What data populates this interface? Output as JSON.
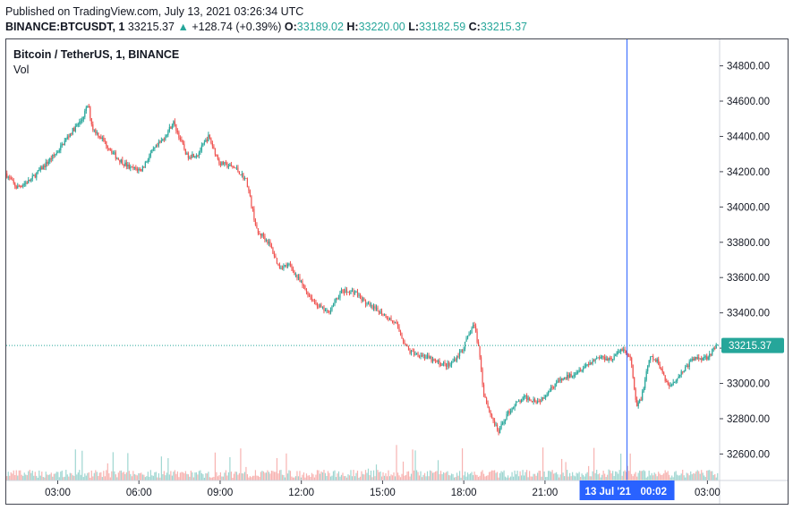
{
  "header": {
    "published": "Published on TradingView.com, July 13, 2021 03:26:34 UTC",
    "symbol": "BINANCE:BTCUSDT, 1",
    "last": "33215.37",
    "change_arrow": "▲",
    "change": "+128.74 (+0.39%)",
    "o_label": "O:",
    "o_value": "33189.02",
    "h_label": "H:",
    "h_value": "33220.00",
    "l_label": "L:",
    "l_value": "33182.59",
    "c_label": "C:",
    "c_value": "33215.37"
  },
  "colors": {
    "up": "#26a69a",
    "down": "#ef5350",
    "crosshair": "#2962ff",
    "vol_up": "#9fd6d1",
    "vol_down": "#f7b3b1",
    "grid": "#eef0f3",
    "price_badge": "#26a69a",
    "time_badge": "#2962ff"
  },
  "chart_data": {
    "type": "line",
    "legend_title": "Bitcoin / TetherUS, 1, BINANCE",
    "volume_label": "Vol",
    "ylim": [
      32450,
      34950
    ],
    "y_ticks": [
      32600,
      32800,
      33000,
      33200,
      33400,
      33600,
      33800,
      34000,
      34200,
      34400,
      34600,
      34800
    ],
    "y_tick_labels": [
      "32600.00",
      "32800.00",
      "33000.00",
      "33200.00",
      "33400.00",
      "33600.00",
      "33800.00",
      "34000.00",
      "34200.00",
      "34400.00",
      "34600.00",
      "34800.00"
    ],
    "xlim_hours": [
      1.1,
      27.45
    ],
    "x_ticks": [
      3,
      6,
      9,
      12,
      15,
      18,
      21,
      27
    ],
    "x_tick_labels": [
      "03:00",
      "06:00",
      "09:00",
      "12:00",
      "15:00",
      "18:00",
      "21:00",
      "03:00"
    ],
    "series": [
      {
        "x_hours": [
          1.1,
          1.5,
          2.0,
          2.5,
          3.0,
          3.5,
          3.9,
          4.15,
          4.3,
          4.7,
          5.2,
          5.7,
          6.1,
          6.5,
          6.9,
          7.3,
          7.8,
          8.2,
          8.6,
          9.0,
          9.6,
          10.0,
          10.4,
          10.6,
          10.85,
          11.2,
          11.6,
          12.0,
          12.5,
          13.0,
          13.5,
          14.0,
          14.5,
          15.0,
          15.5,
          16.0,
          16.5,
          17.0,
          17.5,
          18.0,
          18.4,
          18.6,
          18.75,
          19.0,
          19.3,
          19.6,
          19.9,
          20.3,
          20.8,
          21.4,
          22.0,
          22.5,
          23.0,
          23.5,
          23.9,
          24.2,
          24.4,
          24.6,
          24.9,
          25.2,
          25.6,
          26.0,
          26.5,
          27.0,
          27.4
        ],
        "close": [
          34190,
          34110,
          34150,
          34230,
          34310,
          34420,
          34490,
          34580,
          34450,
          34380,
          34280,
          34220,
          34210,
          34310,
          34380,
          34480,
          34290,
          34300,
          34400,
          34250,
          34220,
          34150,
          33850,
          33840,
          33790,
          33660,
          33670,
          33570,
          33460,
          33400,
          33520,
          33520,
          33440,
          33400,
          33340,
          33180,
          33160,
          33120,
          33100,
          33200,
          33340,
          33180,
          32950,
          32830,
          32720,
          32820,
          32880,
          32920,
          32900,
          33000,
          33050,
          33100,
          33150,
          33140,
          33200,
          33130,
          32860,
          32930,
          33150,
          33120,
          32980,
          33050,
          33140,
          33150,
          33215
        ]
      }
    ],
    "last_price": 33215.37,
    "last_price_label": "33215.37",
    "crosshair_x_hours": 24.03,
    "crosshair_date_label": "13 Jul '21",
    "crosshair_time_label": "00:02",
    "grid": false
  }
}
